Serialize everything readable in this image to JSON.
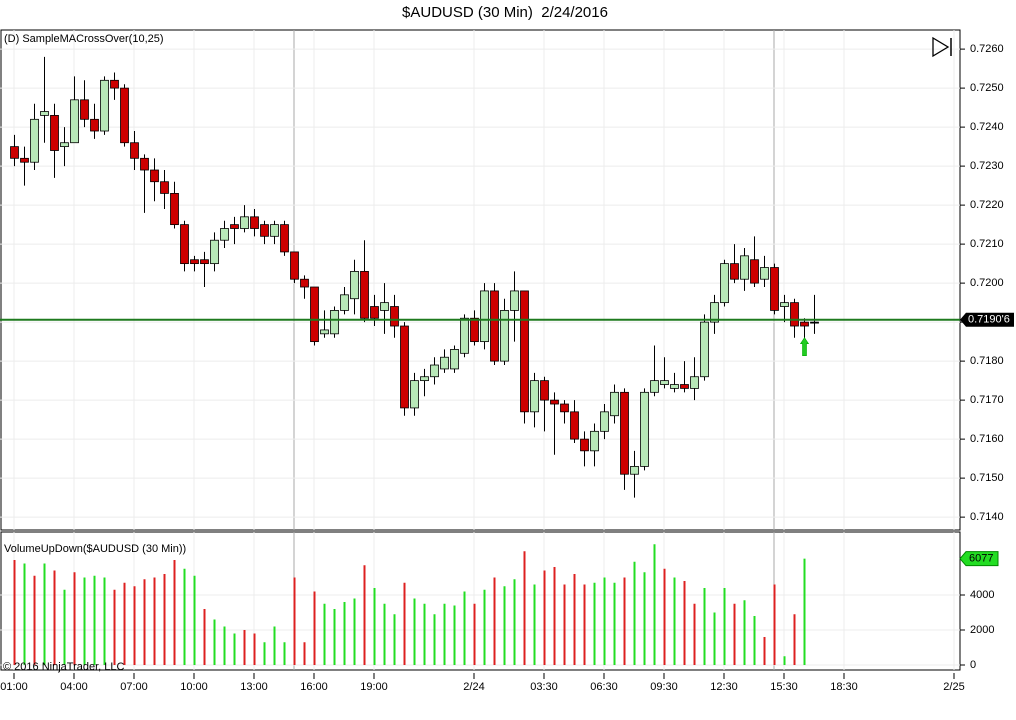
{
  "chart_data": [
    {
      "type": "candlestick",
      "title": "$AUDUSD (30 Min)  2/24/2016",
      "indicator": "(D) SampleMACrossOver(10,25)",
      "x": [
        1,
        1.5,
        2,
        2.5,
        3,
        3.5,
        4,
        4.5,
        5,
        5.5,
        6,
        6.5,
        7,
        7.5,
        8,
        8.5,
        9,
        9.5,
        10,
        10.5,
        11,
        11.5,
        12,
        12.5,
        13,
        13.5,
        14,
        14.5,
        15,
        15.5,
        16,
        16.5,
        17,
        17.5,
        18,
        18.5,
        19,
        19.5,
        20,
        20.5,
        21,
        21.5,
        22,
        22.5,
        23,
        23.5,
        24,
        24.5,
        25,
        25.5,
        26,
        26.5,
        27,
        27.5,
        28,
        28.5,
        29,
        29.5,
        30,
        30.5,
        31,
        31.5,
        32,
        32.5,
        33,
        33.5,
        34,
        34.5,
        35,
        35.5,
        36,
        36.5,
        37,
        37.5,
        38,
        38.5,
        39,
        39.5,
        40,
        40.5,
        41
      ],
      "open": [
        0.7235,
        0.7232,
        0.7231,
        0.7243,
        0.7243,
        0.7235,
        0.7236,
        0.7247,
        0.7242,
        0.7239,
        0.7252,
        0.725,
        0.7236,
        0.7232,
        0.7229,
        0.7226,
        0.7223,
        0.7215,
        0.7206,
        0.7206,
        0.7205,
        0.7211,
        0.7215,
        0.7214,
        0.7217,
        0.7215,
        0.7212,
        0.7215,
        0.7208,
        0.7201,
        0.7199,
        0.7187,
        0.7187,
        0.7193,
        0.7196,
        0.7203,
        0.7194,
        0.7193,
        0.7194,
        0.7189,
        0.7168,
        0.7175,
        0.7176,
        0.7178,
        0.7178,
        0.7182,
        0.7191,
        0.7185,
        0.7198,
        0.718,
        0.7193,
        0.7198,
        0.7167,
        0.7175,
        0.717,
        0.7169,
        0.7167,
        0.716,
        0.7157,
        0.7162,
        0.7166,
        0.7172,
        0.7151,
        0.7153,
        0.7172,
        0.7174,
        0.7173,
        0.7174,
        0.7173,
        0.7176,
        0.719,
        0.7195,
        0.7205,
        0.7201,
        0.7206,
        0.7201,
        0.7204,
        0.7194,
        0.7195,
        0.719,
        0.719
      ],
      "high": [
        0.7238,
        0.7235,
        0.7246,
        0.7258,
        0.7246,
        0.724,
        0.7253,
        0.7252,
        0.7246,
        0.7253,
        0.7254,
        0.7251,
        0.7239,
        0.7233,
        0.7232,
        0.7229,
        0.7226,
        0.7216,
        0.7207,
        0.7208,
        0.7213,
        0.7216,
        0.7217,
        0.722,
        0.7219,
        0.7216,
        0.7216,
        0.7216,
        0.7208,
        0.7202,
        0.7199,
        0.7193,
        0.7194,
        0.7199,
        0.7206,
        0.7211,
        0.7197,
        0.72,
        0.7197,
        0.719,
        0.7177,
        0.7178,
        0.7181,
        0.7183,
        0.7184,
        0.7192,
        0.7193,
        0.72,
        0.72,
        0.7196,
        0.7203,
        0.7198,
        0.7177,
        0.7176,
        0.7172,
        0.717,
        0.717,
        0.7162,
        0.7164,
        0.7169,
        0.7174,
        0.7173,
        0.7157,
        0.7173,
        0.7184,
        0.7181,
        0.7177,
        0.718,
        0.7181,
        0.7192,
        0.7197,
        0.7206,
        0.721,
        0.7209,
        0.7212,
        0.7207,
        0.7205,
        0.7197,
        0.7196,
        0.7191,
        0.7197
      ],
      "low": [
        0.723,
        0.7225,
        0.7229,
        0.7236,
        0.7227,
        0.723,
        0.7236,
        0.724,
        0.7237,
        0.7238,
        0.7247,
        0.7235,
        0.7229,
        0.7218,
        0.7221,
        0.7219,
        0.7214,
        0.7203,
        0.7203,
        0.7199,
        0.7203,
        0.7209,
        0.721,
        0.7213,
        0.7212,
        0.721,
        0.721,
        0.7207,
        0.72,
        0.7196,
        0.7184,
        0.7186,
        0.7186,
        0.7192,
        0.7192,
        0.719,
        0.7189,
        0.7187,
        0.7186,
        0.7166,
        0.7166,
        0.7171,
        0.7174,
        0.7177,
        0.7177,
        0.7181,
        0.7184,
        0.7183,
        0.7179,
        0.7179,
        0.7185,
        0.7164,
        0.7163,
        0.7162,
        0.7156,
        0.7164,
        0.7159,
        0.7153,
        0.7153,
        0.716,
        0.7164,
        0.7147,
        0.7145,
        0.7152,
        0.7171,
        0.7173,
        0.7172,
        0.7172,
        0.717,
        0.7175,
        0.7187,
        0.7194,
        0.72,
        0.7198,
        0.7199,
        0.7199,
        0.7192,
        0.719,
        0.7186,
        0.7183,
        0.7187
      ],
      "close": [
        0.7232,
        0.7231,
        0.7242,
        0.7244,
        0.7234,
        0.7236,
        0.7247,
        0.7242,
        0.7239,
        0.7252,
        0.725,
        0.7236,
        0.7232,
        0.7229,
        0.7226,
        0.7223,
        0.7215,
        0.7205,
        0.7205,
        0.7205,
        0.7211,
        0.7214,
        0.7214,
        0.7217,
        0.7214,
        0.7212,
        0.7215,
        0.7208,
        0.7201,
        0.7199,
        0.7185,
        0.7188,
        0.7193,
        0.7197,
        0.7203,
        0.7191,
        0.7191,
        0.7195,
        0.7189,
        0.7168,
        0.7175,
        0.7176,
        0.7179,
        0.7181,
        0.7183,
        0.7191,
        0.7185,
        0.7198,
        0.718,
        0.7193,
        0.7198,
        0.7167,
        0.7175,
        0.717,
        0.7169,
        0.7167,
        0.716,
        0.7157,
        0.7162,
        0.7167,
        0.7172,
        0.7151,
        0.7153,
        0.7172,
        0.7175,
        0.7175,
        0.7174,
        0.7173,
        0.7176,
        0.719,
        0.7195,
        0.7205,
        0.7201,
        0.7207,
        0.72,
        0.7204,
        0.7193,
        0.7195,
        0.7189,
        0.7189,
        0.719
      ],
      "up_color": "#b8e8b8",
      "down_color": "#cc0000",
      "ylim": [
        0.71367,
        0.72649
      ],
      "yticks": [
        {
          "value": 0.714,
          "label": "0.7140"
        },
        {
          "value": 0.715,
          "label": "0.7150"
        },
        {
          "value": 0.716,
          "label": "0.7160"
        },
        {
          "value": 0.717,
          "label": "0.7170"
        },
        {
          "value": 0.718,
          "label": "0.7180"
        },
        {
          "value": 0.719,
          "label": "0.7190"
        },
        {
          "value": 0.72,
          "label": "0.7200"
        },
        {
          "value": 0.721,
          "label": "0.7210"
        },
        {
          "value": 0.722,
          "label": "0.7220"
        },
        {
          "value": 0.723,
          "label": "0.7230"
        },
        {
          "value": 0.724,
          "label": "0.7240"
        },
        {
          "value": 0.725,
          "label": "0.7250"
        },
        {
          "value": 0.726,
          "label": "0.7260"
        }
      ],
      "last_price": {
        "value": 0.71906,
        "label": "0.7190'6"
      },
      "last_price_color": "#1e7a1e",
      "signals": [
        {
          "x": 40.5,
          "value": 0.7186
        }
      ],
      "signal_color": "#22cc22",
      "session_lines": [
        15,
        39
      ],
      "grid": true
    },
    {
      "type": "bar",
      "title": "VolumeUpDown($AUDUSD (30 Min))",
      "values": [
        6000,
        5800,
        5100,
        5800,
        5400,
        4300,
        5300,
        5000,
        5100,
        5000,
        4300,
        4700,
        4500,
        4900,
        5000,
        5200,
        6000,
        5500,
        5100,
        3200,
        2600,
        2200,
        1800,
        2000,
        1800,
        1300,
        2200,
        1300,
        5000,
        1300,
        4200,
        3500,
        3200,
        3600,
        3800,
        5700,
        4400,
        3500,
        2900,
        4700,
        3800,
        3500,
        2900,
        3500,
        3400,
        4200,
        3500,
        4300,
        5000,
        4500,
        4900,
        6500,
        4600,
        5400,
        5600,
        4600,
        5200,
        4600,
        4700,
        5000,
        4700,
        5000,
        5900,
        5300,
        6900,
        5500,
        5000,
        4800,
        3500,
        4400,
        3000,
        4400,
        3500,
        3700,
        2800,
        1600,
        4600,
        500,
        2900,
        6077
      ],
      "colors": [
        "#dd2020",
        "#22dd22",
        "#dd2020",
        "#22dd22",
        "#dd2020",
        "#22dd22",
        "#dd2020",
        "#22dd22",
        "#22dd22",
        "#22dd22",
        "#dd2020",
        "#dd2020",
        "#dd2020",
        "#dd2020",
        "#dd2020",
        "#dd2020",
        "#dd2020",
        "#22dd22",
        "#22dd22",
        "#dd2020",
        "#22dd22",
        "#22dd22",
        "#22dd22",
        "#dd2020",
        "#dd2020",
        "#22dd22",
        "#22dd22",
        "#22dd22",
        "#dd2020",
        "#dd2020",
        "#dd2020",
        "#22dd22",
        "#22dd22",
        "#22dd22",
        "#22dd22",
        "#dd2020",
        "#22dd22",
        "#22dd22",
        "#22dd22",
        "#dd2020",
        "#22dd22",
        "#22dd22",
        "#22dd22",
        "#22dd22",
        "#22dd22",
        "#22dd22",
        "#dd2020",
        "#22dd22",
        "#dd2020",
        "#22dd22",
        "#22dd22",
        "#dd2020",
        "#22dd22",
        "#dd2020",
        "#dd2020",
        "#dd2020",
        "#dd2020",
        "#dd2020",
        "#22dd22",
        "#22dd22",
        "#22dd22",
        "#dd2020",
        "#22dd22",
        "#22dd22",
        "#22dd22",
        "#dd2020",
        "#22dd22",
        "#dd2020",
        "#dd2020",
        "#22dd22",
        "#22dd22",
        "#22dd22",
        "#dd2020",
        "#22dd22",
        "#22dd22",
        "#dd2020",
        "#dd2020",
        "#22dd22",
        "#dd2020",
        "#22dd22"
      ],
      "ylim": [
        -286,
        7600
      ],
      "yticks": [
        0,
        2000,
        4000
      ],
      "xlim": [
        0.3,
        48.3
      ],
      "xticks": [
        {
          "value": 1,
          "label": "01:00"
        },
        {
          "value": 4,
          "label": "04:00"
        },
        {
          "value": 7,
          "label": "07:00"
        },
        {
          "value": 10,
          "label": "10:00"
        },
        {
          "value": 13,
          "label": "13:00"
        },
        {
          "value": 16,
          "label": "16:00"
        },
        {
          "value": 19,
          "label": "19:00"
        },
        {
          "value": 24,
          "label": "2/24"
        },
        {
          "value": 27.5,
          "label": "03:30"
        },
        {
          "value": 30.5,
          "label": "06:30"
        },
        {
          "value": 33.5,
          "label": "09:30"
        },
        {
          "value": 36.5,
          "label": "12:30"
        },
        {
          "value": 39.5,
          "label": "15:30"
        },
        {
          "value": 42.5,
          "label": "18:30"
        },
        {
          "value": 48,
          "label": "2/25"
        }
      ],
      "footer": "© 2016 NinjaTrader, LLC",
      "grid": true
    }
  ]
}
